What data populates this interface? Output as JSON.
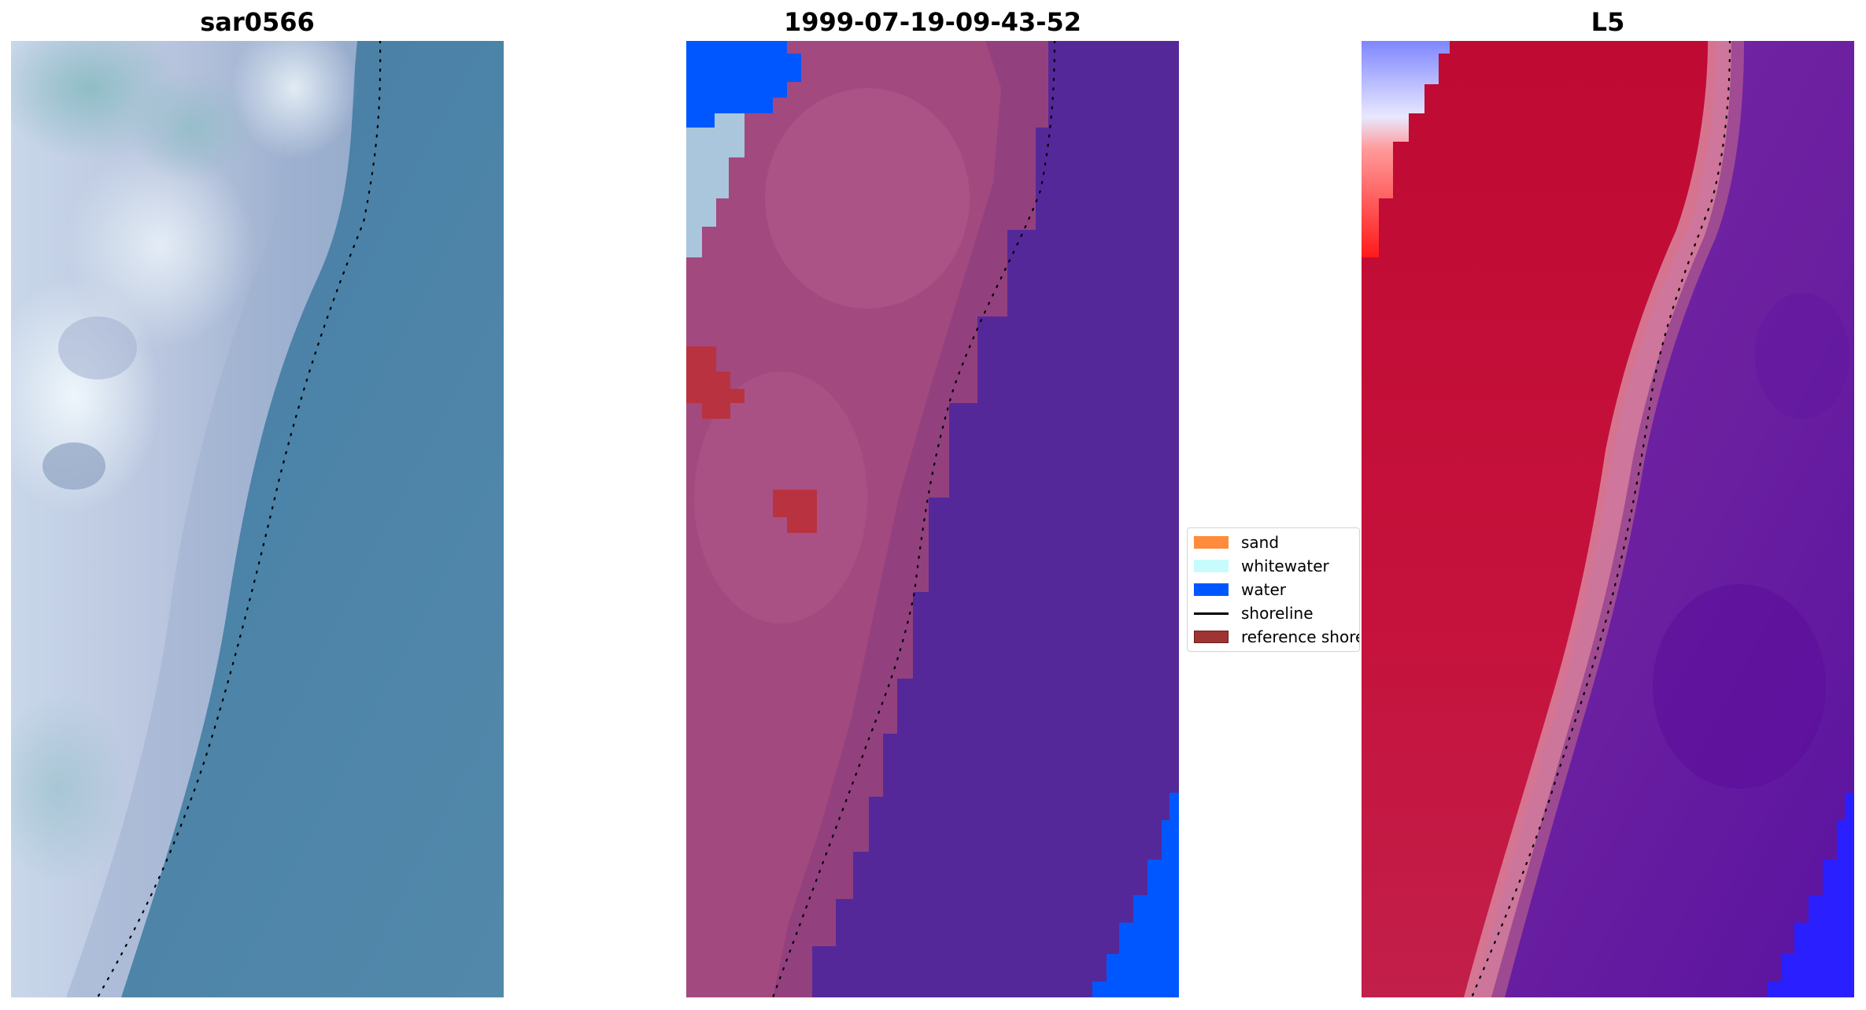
{
  "panels": [
    {
      "title": "sar0566"
    },
    {
      "title": "1999-07-19-09-43-52"
    },
    {
      "title": "L5"
    }
  ],
  "legend": {
    "items": [
      {
        "label": "sand",
        "color": "#ff8c3c"
      },
      {
        "label": "whitewater",
        "color": "#c8fcfc"
      },
      {
        "label": "water",
        "color": "#0057ff"
      },
      {
        "label": "shoreline",
        "color": "#000000"
      },
      {
        "label": "reference shoreline",
        "color": "#9e3434"
      }
    ]
  },
  "colors": {
    "sea_rgb": "#4d80a5",
    "beach_rgb": "#b4bed8",
    "sand_class": "#a2497f",
    "sea_class": "#55289a",
    "water_class": "#0057ff",
    "whitewater_class": "#a9c6dc",
    "reference_shoreline": "#b8333f",
    "index_land": "#c3123a",
    "index_sea": "#7124a2",
    "index_water": "#2a1fff"
  }
}
